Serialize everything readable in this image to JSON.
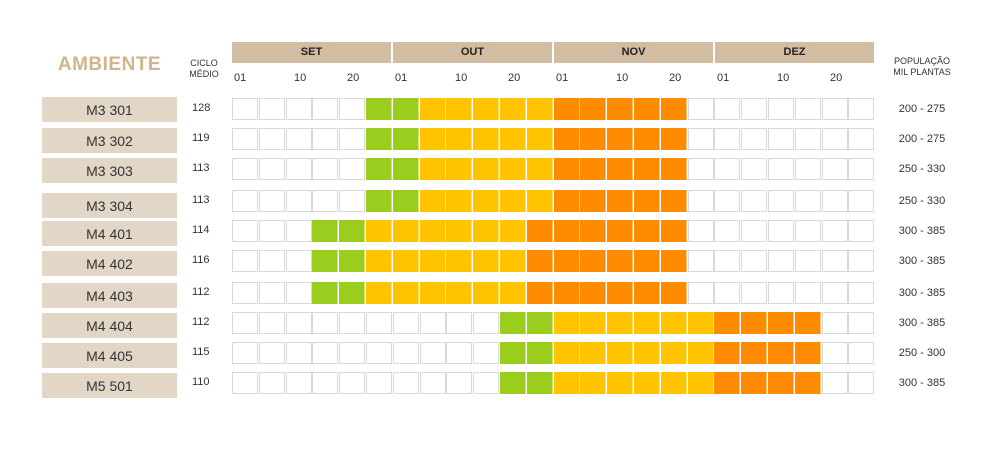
{
  "chart_data": {
    "type": "table",
    "title": "AMBIENTE",
    "ciclo_header": [
      "CICLO",
      "MÉDIO"
    ],
    "population_header": [
      "POPULAÇÃO",
      "MIL PLANTAS"
    ],
    "months": [
      "SET",
      "OUT",
      "NOV",
      "DEZ"
    ],
    "month_ticks": [
      "01",
      "10",
      "20"
    ],
    "periods_per_month": 6,
    "legend_colors": {
      "1": "#9acd1e",
      "2": "#ffc300",
      "3": "#ff8c00",
      "empty": "#ffffff"
    },
    "rows": [
      {
        "ambiente": "M3 301",
        "ciclo": "128",
        "populacao": "200 - 275",
        "phases": [
          [
            5,
            6,
            1
          ],
          [
            7,
            11,
            2
          ],
          [
            12,
            16,
            3
          ]
        ]
      },
      {
        "ambiente": "M3 302",
        "ciclo": "119",
        "populacao": "200 - 275",
        "phases": [
          [
            5,
            6,
            1
          ],
          [
            7,
            11,
            2
          ],
          [
            12,
            16,
            3
          ]
        ]
      },
      {
        "ambiente": "M3 303",
        "ciclo": "113",
        "populacao": "250 - 330",
        "phases": [
          [
            5,
            6,
            1
          ],
          [
            7,
            11,
            2
          ],
          [
            12,
            16,
            3
          ]
        ]
      },
      {
        "ambiente": "M3 304",
        "ciclo": "113",
        "populacao": "250 - 330",
        "phases": [
          [
            5,
            6,
            1
          ],
          [
            7,
            11,
            2
          ],
          [
            12,
            16,
            3
          ]
        ]
      },
      {
        "ambiente": "M4 401",
        "ciclo": "114",
        "populacao": "300 - 385",
        "phases": [
          [
            3,
            4,
            1
          ],
          [
            5,
            10,
            2
          ],
          [
            11,
            16,
            3
          ]
        ]
      },
      {
        "ambiente": "M4 402",
        "ciclo": "116",
        "populacao": "300 - 385",
        "phases": [
          [
            3,
            4,
            1
          ],
          [
            5,
            10,
            2
          ],
          [
            11,
            16,
            3
          ]
        ]
      },
      {
        "ambiente": "M4 403",
        "ciclo": "112",
        "populacao": "300 - 385",
        "phases": [
          [
            3,
            4,
            1
          ],
          [
            5,
            10,
            2
          ],
          [
            11,
            16,
            3
          ]
        ]
      },
      {
        "ambiente": "M4 404",
        "ciclo": "112",
        "populacao": "300 - 385",
        "phases": [
          [
            10,
            11,
            1
          ],
          [
            12,
            17,
            2
          ],
          [
            18,
            21,
            3
          ]
        ]
      },
      {
        "ambiente": "M4 405",
        "ciclo": "115",
        "populacao": "250 - 300",
        "phases": [
          [
            10,
            11,
            1
          ],
          [
            12,
            17,
            2
          ],
          [
            18,
            21,
            3
          ]
        ]
      },
      {
        "ambiente": "M5 501",
        "ciclo": "110",
        "populacao": "300 - 385",
        "phases": [
          [
            10,
            11,
            1
          ],
          [
            12,
            17,
            2
          ],
          [
            18,
            21,
            3
          ]
        ]
      }
    ]
  }
}
